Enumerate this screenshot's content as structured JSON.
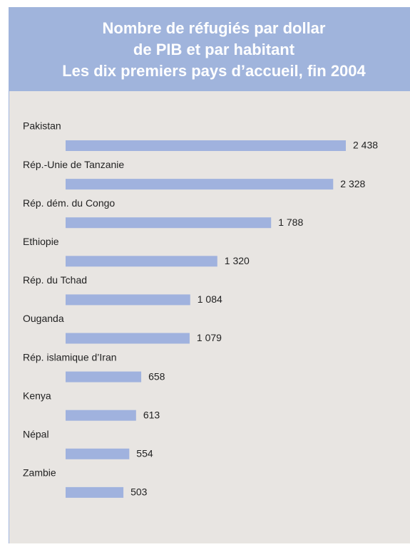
{
  "chart_data": {
    "type": "bar",
    "orientation": "horizontal",
    "title": [
      "Nombre de réfugiés par dollar",
      "de PIB et par habitant",
      "Les dix premiers pays d’accueil, fin 2004"
    ],
    "categories": [
      "Pakistan",
      "Rép.-Unie de Tanzanie",
      "Rép. dém. du Congo",
      "Ethiopie",
      "Rép. du Tchad",
      "Ouganda",
      "Rép. islamique d’Iran",
      "Kenya",
      "Népal",
      "Zambie"
    ],
    "values": [
      2438,
      2328,
      1788,
      1320,
      1084,
      1079,
      658,
      613,
      554,
      503
    ],
    "value_labels": [
      "2 438",
      "2 328",
      "1 788",
      "1 320",
      "1 084",
      "1 079",
      "658",
      "613",
      "554",
      "503"
    ],
    "color": "#a0b2de"
  }
}
